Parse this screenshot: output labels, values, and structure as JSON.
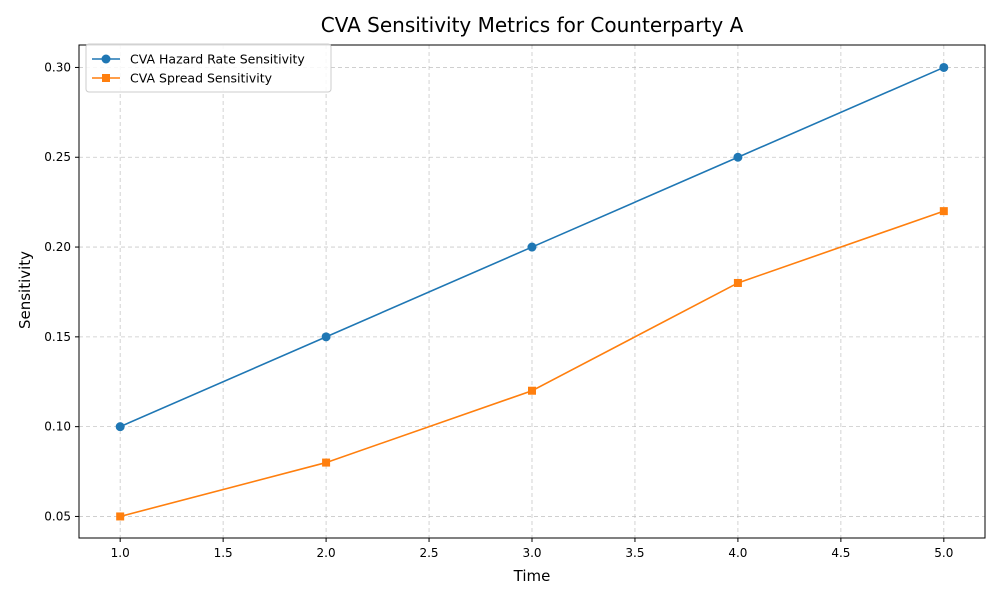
{
  "chart_data": {
    "type": "line",
    "title": "CVA Sensitivity Metrics for Counterparty A",
    "xlabel": "Time",
    "ylabel": "Sensitivity",
    "xlim": [
      0.8,
      5.2
    ],
    "ylim": [
      0.038,
      0.3125
    ],
    "x_ticks": [
      1.0,
      1.5,
      2.0,
      2.5,
      3.0,
      3.5,
      4.0,
      4.5,
      5.0
    ],
    "x_tick_labels": [
      "1.0",
      "1.5",
      "2.0",
      "2.5",
      "3.0",
      "3.5",
      "4.0",
      "4.5",
      "5.0"
    ],
    "y_ticks": [
      0.05,
      0.1,
      0.15,
      0.2,
      0.25,
      0.3
    ],
    "y_tick_labels": [
      "0.05",
      "0.10",
      "0.15",
      "0.20",
      "0.25",
      "0.30"
    ],
    "grid": true,
    "legend_position": "top-left",
    "x": [
      1,
      2,
      3,
      4,
      5
    ],
    "series": [
      {
        "name": "CVA Hazard Rate Sensitivity",
        "values": [
          0.1,
          0.15,
          0.2,
          0.25,
          0.3
        ],
        "color": "#1f77b4",
        "marker": "circle"
      },
      {
        "name": "CVA Spread Sensitivity",
        "values": [
          0.05,
          0.08,
          0.12,
          0.18,
          0.22
        ],
        "color": "#ff7f0e",
        "marker": "square"
      }
    ]
  }
}
